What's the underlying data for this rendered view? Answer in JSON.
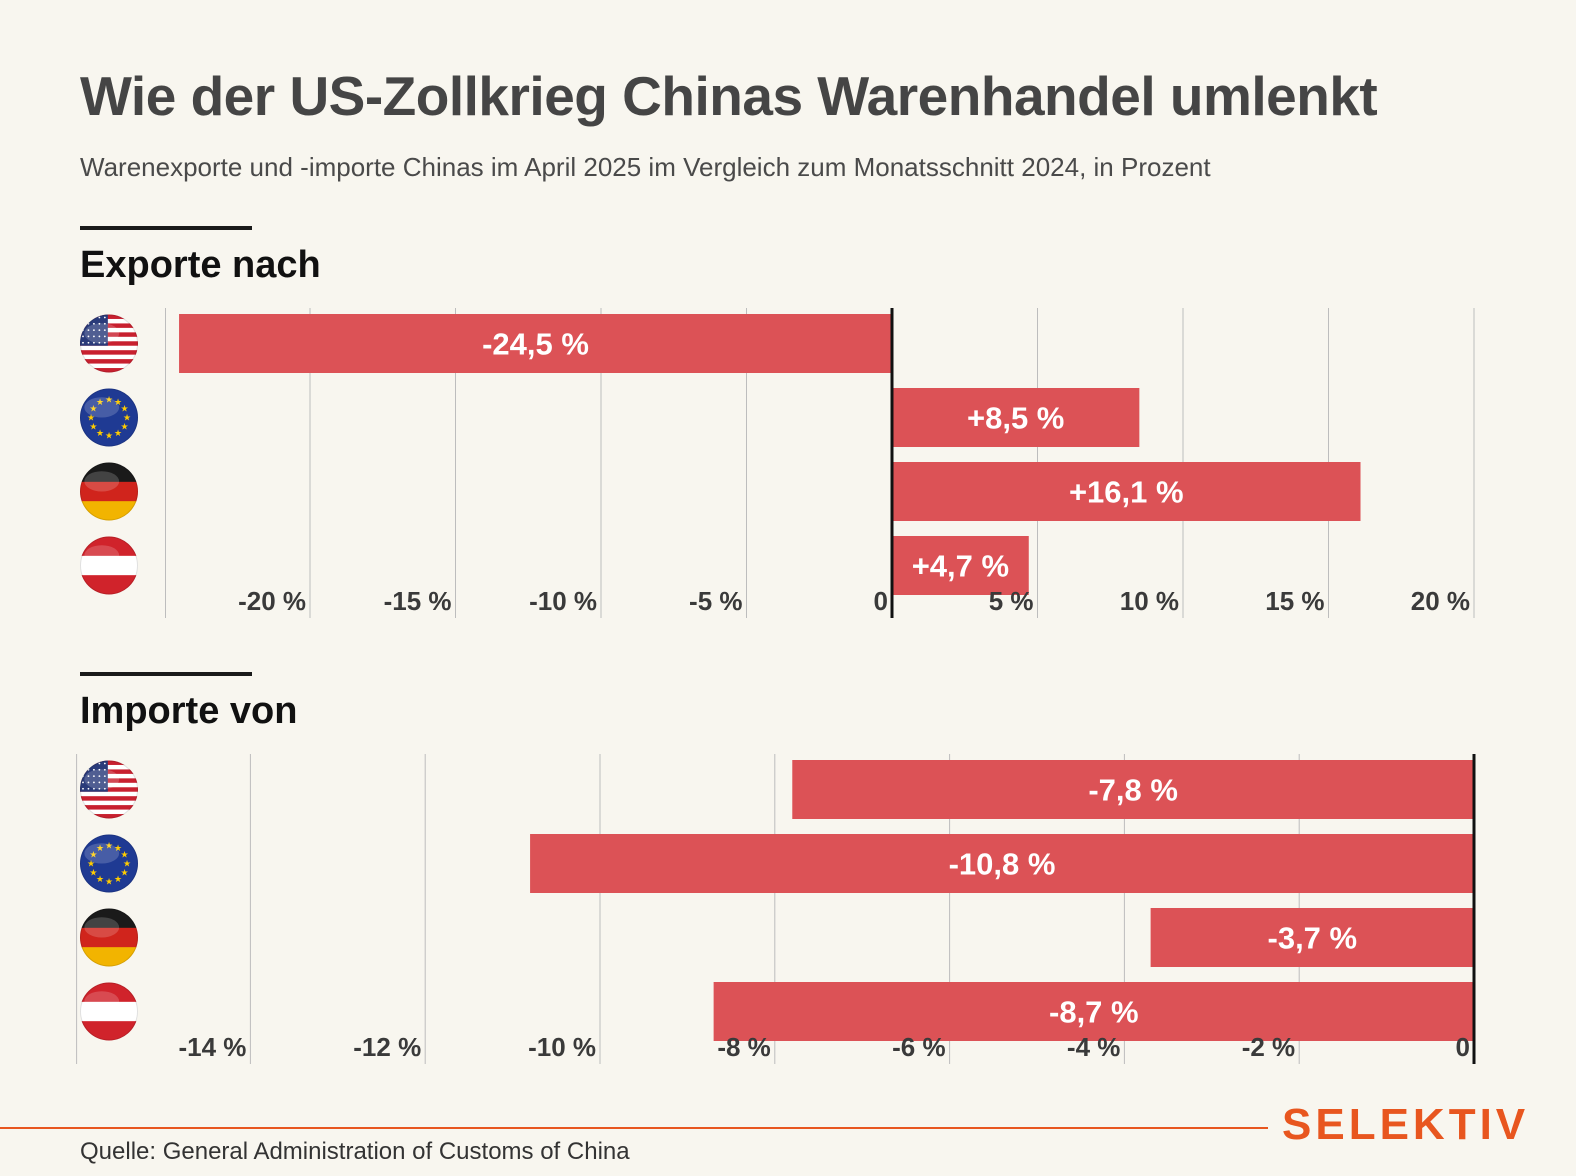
{
  "header": {
    "title": "Wie der US-Zollkrieg Chinas Warenhandel umlenkt",
    "subtitle": "Warenexporte und -importe Chinas im April 2025 im Vergleich zum Monatsschnitt 2024, in Prozent"
  },
  "colors": {
    "bar": "#dc5256",
    "grid": "#bdbdbd",
    "axis": "#111111",
    "brand": "#e8561f"
  },
  "chart_data": [
    {
      "type": "bar",
      "orientation": "horizontal",
      "title": "Exporte nach",
      "categories": [
        "USA",
        "EU",
        "Deutschland",
        "Österreich"
      ],
      "category_icons": [
        "us-flag-icon",
        "eu-flag-icon",
        "germany-flag-icon",
        "austria-flag-icon"
      ],
      "values": [
        -24.5,
        8.5,
        16.1,
        4.7
      ],
      "labels": [
        "-24,5 %",
        "+8,5 %",
        "+16,1 %",
        "+4,7 %"
      ],
      "xlim": [
        -25,
        20
      ],
      "ticks": [
        -20,
        -15,
        -10,
        -5,
        0,
        5,
        10,
        15,
        20
      ],
      "tick_labels": [
        "-20 %",
        "-15 %",
        "-10 %",
        "-5 %",
        "0",
        "5 %",
        "10 %",
        "15 %",
        "20 %"
      ],
      "grid": true
    },
    {
      "type": "bar",
      "orientation": "horizontal",
      "title": "Importe von",
      "categories": [
        "USA",
        "EU",
        "Deutschland",
        "Österreich"
      ],
      "category_icons": [
        "us-flag-icon",
        "eu-flag-icon",
        "germany-flag-icon",
        "austria-flag-icon"
      ],
      "values": [
        -7.8,
        -10.8,
        -3.7,
        -8.7
      ],
      "labels": [
        "-7,8 %",
        "-10,8 %",
        "-3,7 %",
        "-8,7 %"
      ],
      "xlim": [
        -16,
        0
      ],
      "ticks": [
        -14,
        -12,
        -10,
        -8,
        -6,
        -4,
        -2,
        0
      ],
      "tick_labels": [
        "-14 %",
        "-12 %",
        "-10 %",
        "-8 %",
        "-6 %",
        "-4 %",
        "-2 %",
        "0"
      ],
      "grid": true
    }
  ],
  "footer": {
    "brand": "SELEKTIV",
    "source": "Quelle: General Administration of Customs of China"
  }
}
